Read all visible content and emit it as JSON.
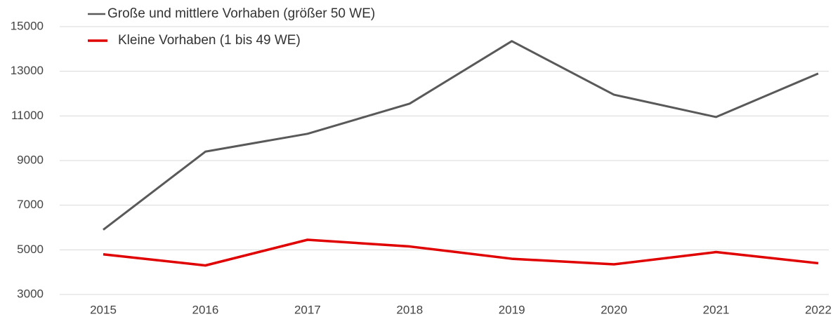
{
  "chart_data": {
    "type": "line",
    "categories": [
      "2015",
      "2016",
      "2017",
      "2018",
      "2019",
      "2020",
      "2021",
      "2022"
    ],
    "series": [
      {
        "name": "Große und mittlere Vorhaben (größer 50 WE)",
        "color": "#595959",
        "values": [
          5900,
          9400,
          10200,
          11550,
          14350,
          11950,
          10950,
          12900
        ]
      },
      {
        "name": "Kleine Vorhaben (1 bis 49 WE)",
        "color": "#e00000",
        "values": [
          4800,
          4300,
          5450,
          5150,
          4600,
          4350,
          4900,
          4400
        ]
      }
    ],
    "ylim": [
      3000,
      15000
    ],
    "yticks": [
      3000,
      5000,
      7000,
      9000,
      11000,
      13000,
      15000
    ],
    "grid": true,
    "legend": "top-left"
  }
}
